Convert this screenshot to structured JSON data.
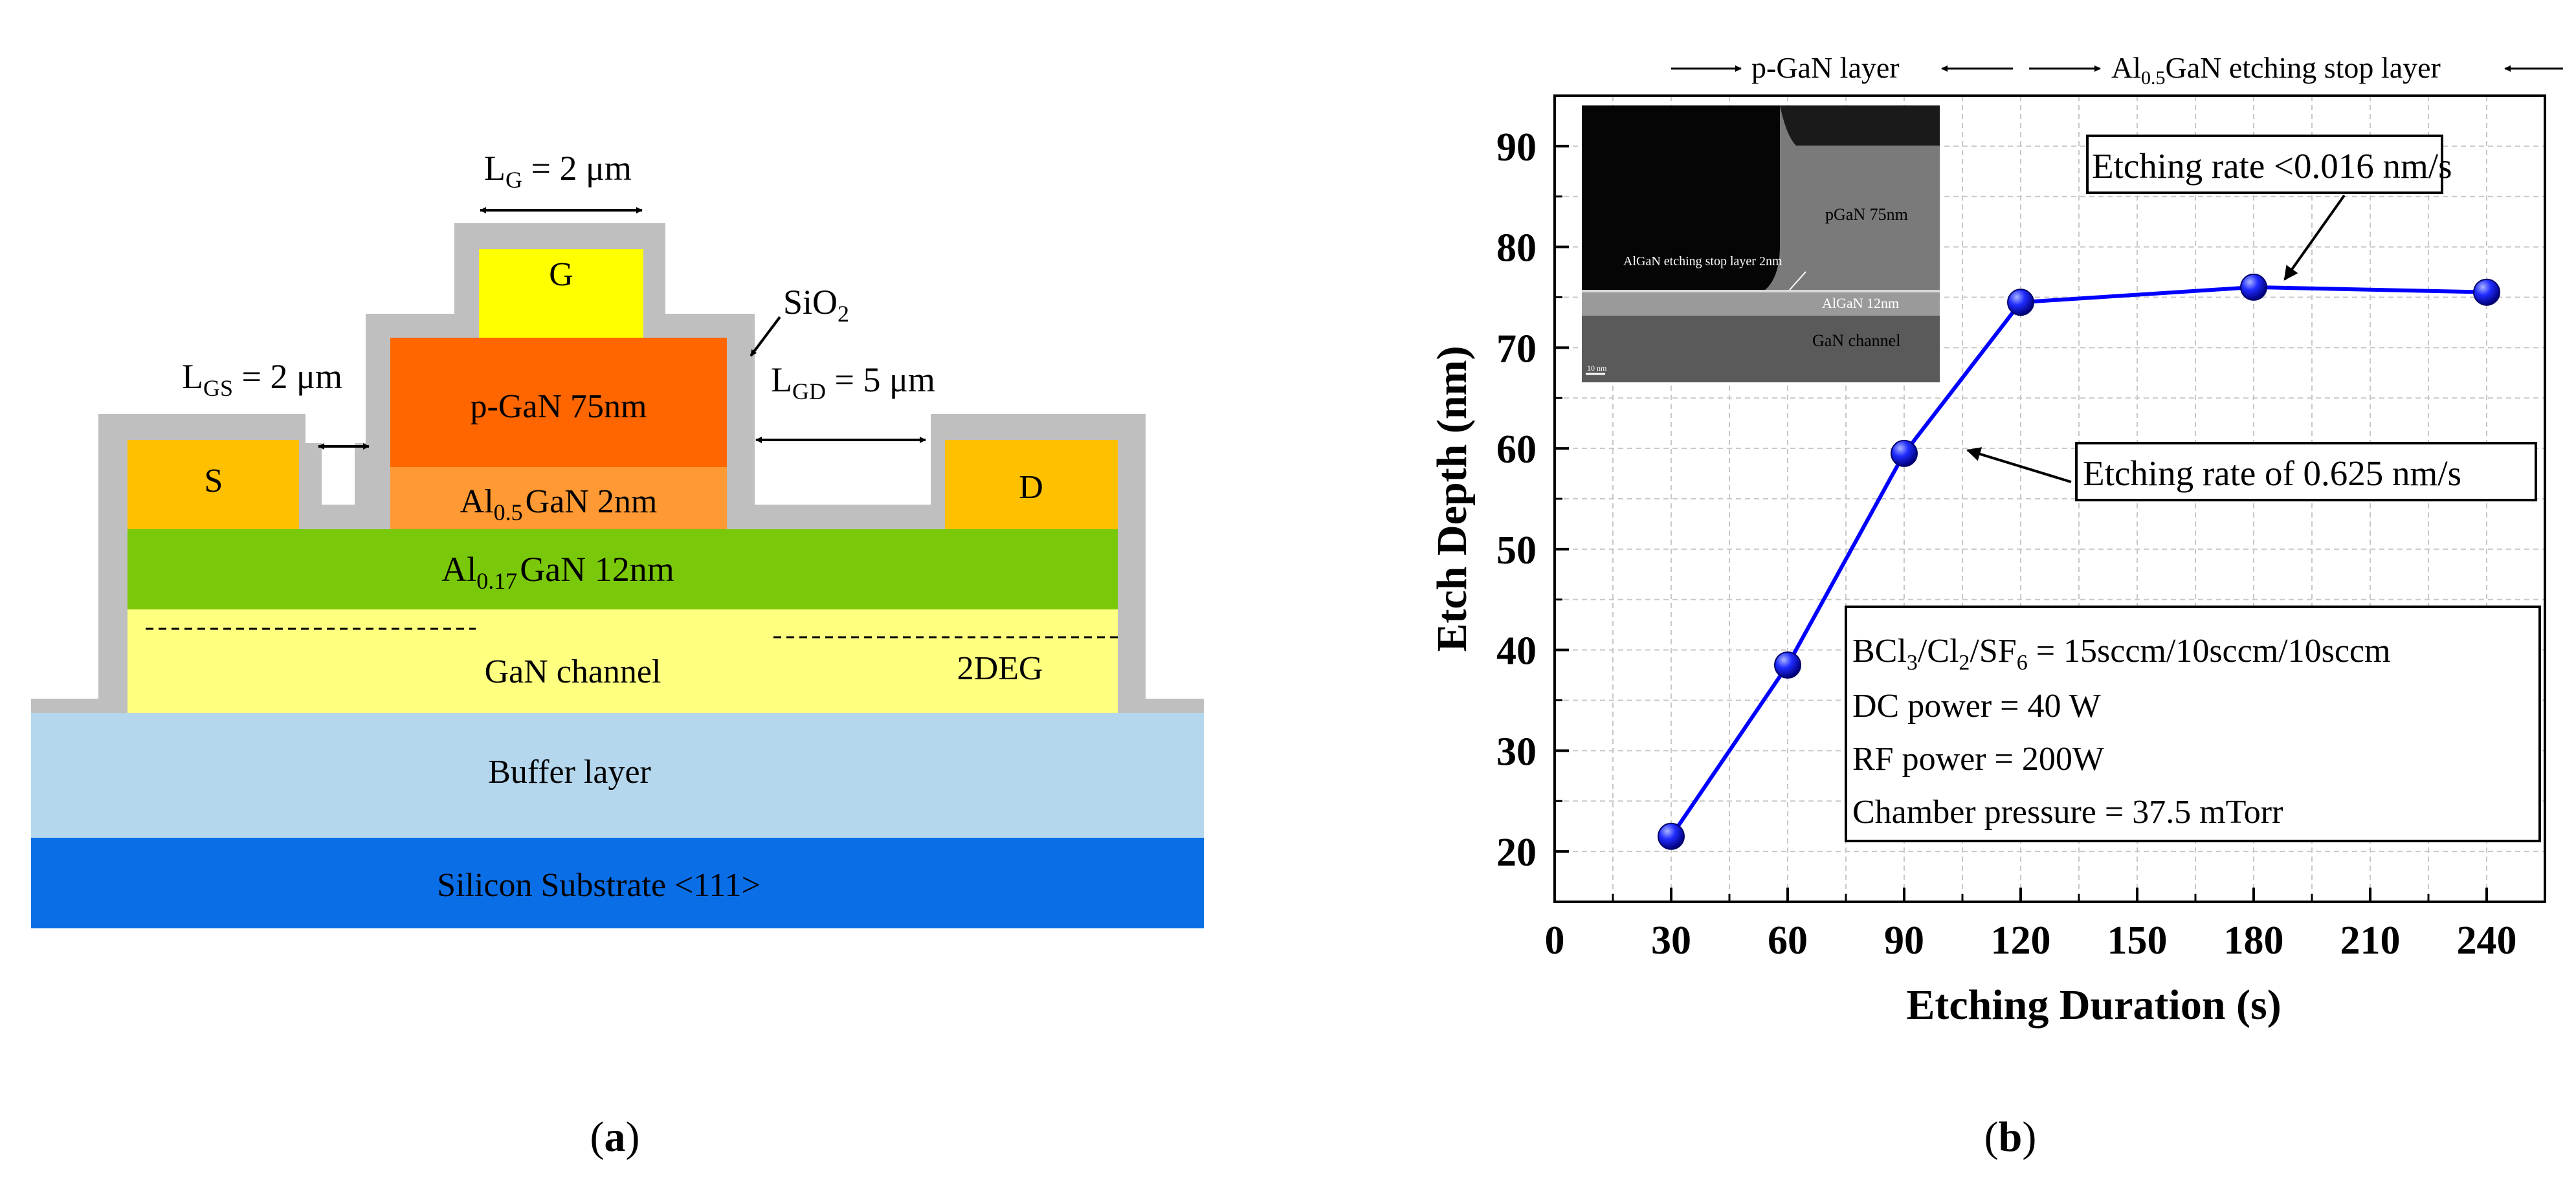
{
  "panel_a": {
    "caption": "a",
    "labels": {
      "lg_main": "L",
      "lg_sub": "G",
      "lg_val": " = 2 μm",
      "gate": "G",
      "sio2_main": "SiO",
      "sio2_sub": "2",
      "lgs_main": "L",
      "lgs_sub": "GS",
      "lgs_val": " = 2 μm",
      "lgd_main": "L",
      "lgd_sub": "GD",
      "lgd_val": " = 5 μm",
      "source": "S",
      "drain": "D",
      "pgan": "p-GaN 75nm",
      "algan_main": "Al",
      "algan_sub": "0.5",
      "algan_rest": "GaN 2nm",
      "barrier_main": "Al",
      "barrier_sub": "0.17",
      "barrier_rest": "GaN 12nm",
      "channel": "GaN channel",
      "twodeg": "2DEG",
      "buffer": "Buffer  layer",
      "substrate": "Silicon  Substrate <111>"
    },
    "colors": {
      "passivation": "#bfbfbf",
      "gate": "#ffff00",
      "pgan": "#ff6600",
      "algan": "#ff9933",
      "contact": "#ffc000",
      "barrier": "#7ac80a",
      "channel": "#ffff80",
      "buffer": "#b4d7ee",
      "substrate": "#0a6ee6"
    }
  },
  "panel_b": {
    "caption": "b",
    "top_labels": {
      "pgan_layer": "p-GaN layer",
      "stop_main": "Al",
      "stop_sub": "0.5",
      "stop_rest": "GaN etching stop layer"
    },
    "inset": {
      "pgan": "pGaN 75nm",
      "stop": "AlGaN etching stop layer 2nm",
      "algan": "AlGaN 12nm",
      "channel": "GaN channel",
      "scale": "10 nm"
    },
    "callouts": {
      "rate_low": "Etching rate <0.016 nm/s",
      "rate_high": "Etching rate of 0.625 nm/s"
    },
    "conditions": {
      "gas_a": "BCl",
      "gas_a_sub": "3",
      "gas_b": "/Cl",
      "gas_b_sub": "2",
      "gas_c": "/SF",
      "gas_c_sub": "6",
      "gas_val": " = 15sccm/10sccm/10sccm",
      "dc": "DC power = 40 W",
      "rf": "RF power = 200W",
      "pressure": "Chamber pressure = 37.5 mTorr"
    },
    "colors": {
      "line": "#0000ff",
      "marker": "#1a1aff",
      "grid": "#c8c8c8"
    }
  },
  "chart_data": {
    "type": "line",
    "title": "",
    "xlabel": "Etching Duration (s)",
    "ylabel": "Etch Depth (nm)",
    "xlim": [
      0,
      255
    ],
    "ylim": [
      15,
      95
    ],
    "xticks": [
      0,
      30,
      60,
      90,
      120,
      150,
      180,
      210,
      240
    ],
    "yticks": [
      20,
      30,
      40,
      50,
      60,
      70,
      80,
      90
    ],
    "grid": true,
    "series": [
      {
        "name": "Etch depth",
        "x": [
          30,
          60,
          90,
          120,
          180,
          240
        ],
        "y": [
          21.5,
          38.5,
          59.5,
          74.5,
          76,
          75.5
        ]
      }
    ]
  }
}
